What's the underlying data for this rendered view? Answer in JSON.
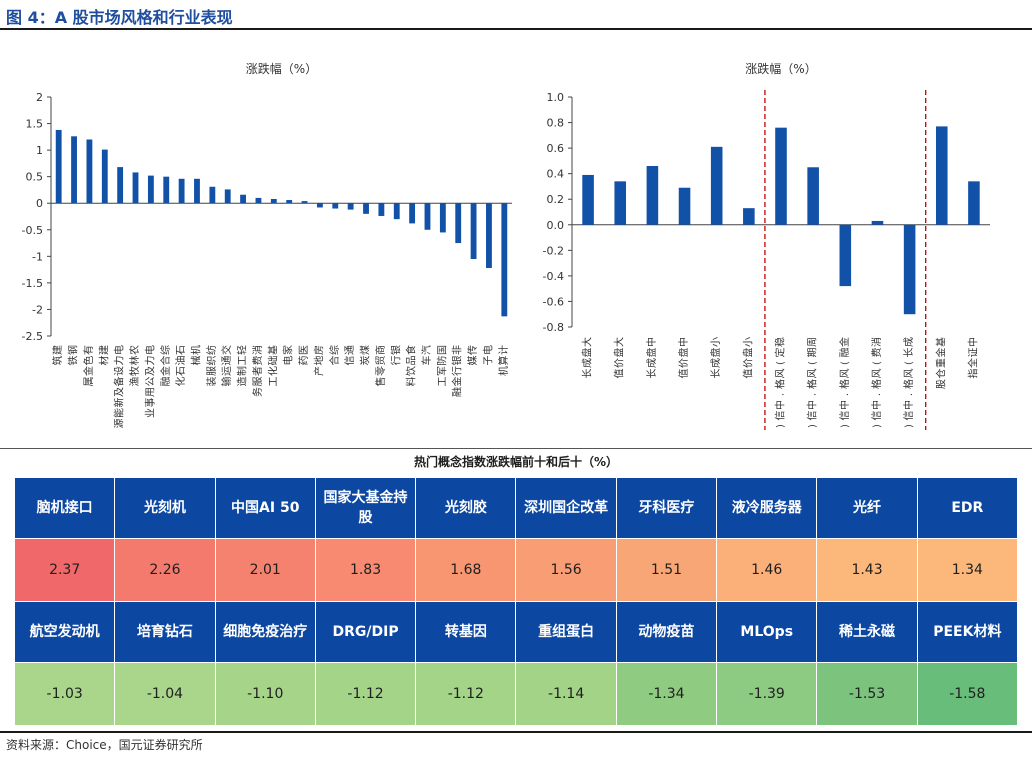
{
  "figure_title": "图 4：A 股市场风格和行业表现",
  "source": "资料来源：Choice，国元证券研究所",
  "colors": {
    "bar": "#1251a8",
    "header": "#0c47a1",
    "divider": "#c00000"
  },
  "chart_data": [
    {
      "type": "bar",
      "title": "涨跌幅（%）",
      "ylim": [
        -2.5,
        2
      ],
      "yticks": [
        "2",
        "1.5",
        "1",
        "0.5",
        "0",
        "-0.5",
        "-1",
        "-1.5",
        "-2",
        "-2.5"
      ],
      "ytick_values": [
        2,
        1.5,
        1,
        0.5,
        0,
        -0.5,
        -1,
        -1.5,
        -2,
        -2.5
      ],
      "categories": [
        "建筑",
        "钢铁",
        "有色金属",
        "建材",
        "电力设备及新能源",
        "农林牧渔",
        "电力及公用事业",
        "综合金融",
        "石油石化",
        "机械",
        "纺织服装",
        "交通运输",
        "轻工制造",
        "消费者服务",
        "基础化工",
        "家电",
        "医药",
        "房地产",
        "综合",
        "通信",
        "煤炭",
        "商贸零售",
        "银行",
        "食品饮料",
        "汽车",
        "国防军工",
        "非银行金融",
        "传媒",
        "电子",
        "计算机"
      ],
      "values": [
        1.38,
        1.26,
        1.2,
        1.01,
        0.68,
        0.58,
        0.52,
        0.5,
        0.46,
        0.46,
        0.31,
        0.26,
        0.16,
        0.1,
        0.08,
        0.06,
        0.04,
        -0.08,
        -0.1,
        -0.12,
        -0.2,
        -0.24,
        -0.3,
        -0.38,
        -0.5,
        -0.55,
        -0.75,
        -1.05,
        -1.22,
        -2.13
      ]
    },
    {
      "type": "bar",
      "title": "涨跌幅（%）",
      "ylim": [
        -0.8,
        1.0
      ],
      "yticks": [
        "1.0",
        "0.8",
        "0.6",
        "0.4",
        "0.2",
        "0.0",
        "-0.2",
        "-0.4",
        "-0.6",
        "-0.8"
      ],
      "ytick_values": [
        1.0,
        0.8,
        0.6,
        0.4,
        0.2,
        0.0,
        -0.2,
        -0.4,
        -0.6,
        -0.8
      ],
      "categories": [
        "大盘成长",
        "大盘价值",
        "中盘成长",
        "中盘价值",
        "小盘成长",
        "小盘价值",
        "稳定(风格.中信)",
        "周期(风格.中信)",
        "金融(风格.中信)",
        "消费(风格.中信)",
        "成长(风格.中信)",
        "基金重仓股",
        "中证全指"
      ],
      "values": [
        0.39,
        0.34,
        0.46,
        0.29,
        0.61,
        0.13,
        0.76,
        0.45,
        -0.48,
        0.03,
        -0.7,
        0.77,
        0.34
      ],
      "dividers_after": [
        5,
        10
      ]
    }
  ],
  "table": {
    "title": "热门概念指数涨跌幅前十和后十（%）",
    "top_names": [
      "脑机接口",
      "光刻机",
      "中国AI 50",
      "国家大基金持股",
      "光刻胶",
      "深圳国企改革",
      "牙科医疗",
      "液冷服务器",
      "光纤",
      "EDR"
    ],
    "top_values": [
      "2.37",
      "2.26",
      "2.01",
      "1.83",
      "1.68",
      "1.56",
      "1.51",
      "1.46",
      "1.43",
      "1.34"
    ],
    "top_colors": [
      "#f0686a",
      "#f47a6d",
      "#f5826e",
      "#f78a70",
      "#f89672",
      "#f99e74",
      "#f9a676",
      "#fab078",
      "#fbb87a",
      "#fbb87a"
    ],
    "bottom_names": [
      "航空发动机",
      "培育钻石",
      "细胞免疫治疗",
      "DRG/DIP",
      "转基因",
      "重组蛋白",
      "动物疫苗",
      "MLOps",
      "稀土永磁",
      "PEEK材料"
    ],
    "bottom_values": [
      "-1.03",
      "-1.04",
      "-1.10",
      "-1.12",
      "-1.12",
      "-1.14",
      "-1.34",
      "-1.39",
      "-1.53",
      "-1.58"
    ],
    "bottom_colors": [
      "#a9d68a",
      "#a9d68a",
      "#a6d589",
      "#a4d488",
      "#a4d488",
      "#a2d387",
      "#8fcc82",
      "#8ccb81",
      "#7cc47e",
      "#69bd7b"
    ]
  }
}
